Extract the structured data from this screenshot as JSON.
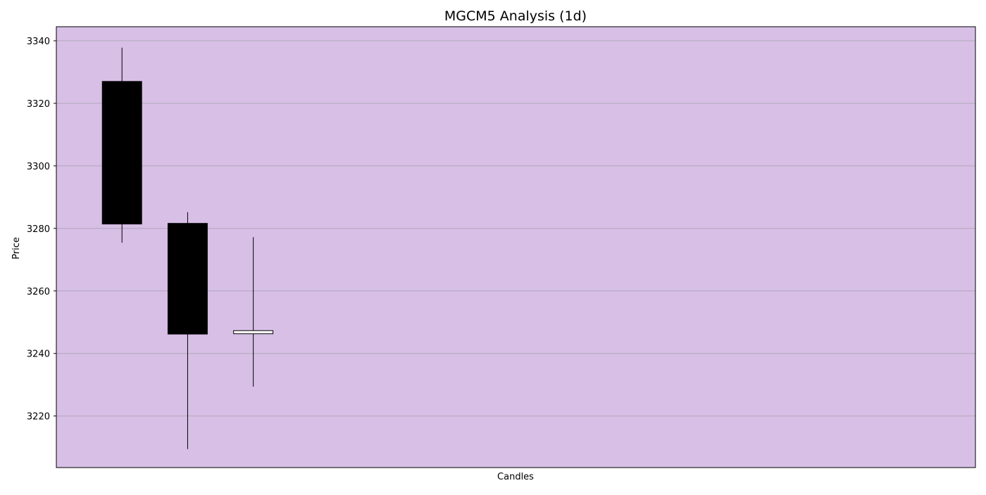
{
  "chart_data": {
    "type": "candlestick",
    "title": "MGCM5 Analysis (1d)",
    "xlabel": "Candles",
    "ylabel": "Price",
    "ylim": [
      3203.5,
      3344.5
    ],
    "xlim": [
      0,
      14
    ],
    "y_ticks": [
      3220,
      3240,
      3260,
      3280,
      3300,
      3320,
      3340
    ],
    "grid": true,
    "background_color": "#d8bfe6",
    "grid_color": "#b0a8b8",
    "bearish_color": "#000000",
    "bullish_color": "#ffffff",
    "candles": [
      {
        "index": 1,
        "open": 3327.0,
        "high": 3337.8,
        "low": 3275.4,
        "close": 3281.4
      },
      {
        "index": 2,
        "open": 3281.6,
        "high": 3285.2,
        "low": 3209.4,
        "close": 3246.2
      },
      {
        "index": 3,
        "open": 3246.3,
        "high": 3277.2,
        "low": 3229.4,
        "close": 3247.3
      }
    ]
  }
}
